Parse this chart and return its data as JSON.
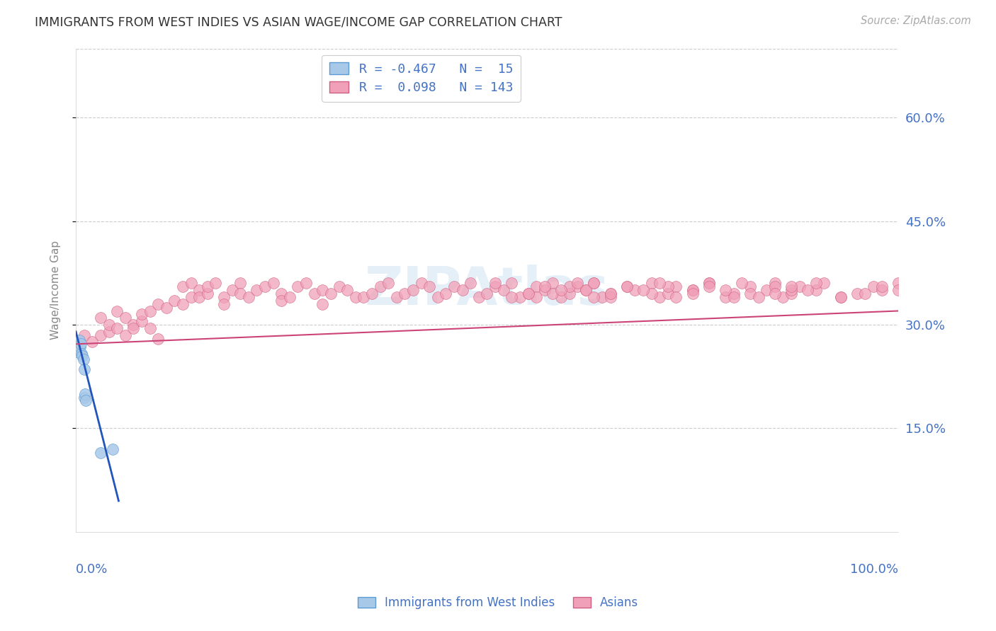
{
  "title": "IMMIGRANTS FROM WEST INDIES VS ASIAN WAGE/INCOME GAP CORRELATION CHART",
  "source": "Source: ZipAtlas.com",
  "ylabel": "Wage/Income Gap",
  "ytick_values": [
    0.15,
    0.3,
    0.45,
    0.6
  ],
  "ytick_labels": [
    "15.0%",
    "30.0%",
    "45.0%",
    "60.0%"
  ],
  "xlim": [
    0.0,
    1.0
  ],
  "ylim": [
    0.0,
    0.7
  ],
  "background_color": "#ffffff",
  "grid_color": "#cccccc",
  "title_color": "#333333",
  "axis_label_color": "#4472c4",
  "watermark": "ZIPAtlas",
  "blue_scatter_x": [
    0.001,
    0.002,
    0.003,
    0.004,
    0.005,
    0.006,
    0.007,
    0.008,
    0.009,
    0.01,
    0.01,
    0.011,
    0.012,
    0.03,
    0.045
  ],
  "blue_scatter_y": [
    0.27,
    0.265,
    0.26,
    0.278,
    0.268,
    0.272,
    0.258,
    0.255,
    0.25,
    0.235,
    0.195,
    0.2,
    0.19,
    0.115,
    0.12
  ],
  "blue_line_x": [
    0.0,
    0.052
  ],
  "blue_line_y": [
    0.29,
    0.045
  ],
  "pink_scatter_x": [
    0.01,
    0.02,
    0.03,
    0.03,
    0.04,
    0.04,
    0.05,
    0.05,
    0.06,
    0.06,
    0.07,
    0.07,
    0.08,
    0.08,
    0.09,
    0.09,
    0.1,
    0.1,
    0.11,
    0.12,
    0.13,
    0.13,
    0.14,
    0.14,
    0.15,
    0.15,
    0.16,
    0.16,
    0.17,
    0.18,
    0.18,
    0.19,
    0.2,
    0.2,
    0.21,
    0.22,
    0.23,
    0.24,
    0.25,
    0.25,
    0.26,
    0.27,
    0.28,
    0.29,
    0.3,
    0.3,
    0.31,
    0.32,
    0.33,
    0.34,
    0.35,
    0.36,
    0.37,
    0.38,
    0.39,
    0.4,
    0.41,
    0.42,
    0.43,
    0.44,
    0.45,
    0.46,
    0.47,
    0.48,
    0.49,
    0.5,
    0.51,
    0.52,
    0.53,
    0.54,
    0.55,
    0.56,
    0.57,
    0.58,
    0.59,
    0.6,
    0.61,
    0.62,
    0.63,
    0.64,
    0.65,
    0.67,
    0.68,
    0.7,
    0.71,
    0.72,
    0.73,
    0.75,
    0.77,
    0.79,
    0.8,
    0.82,
    0.84,
    0.85,
    0.86,
    0.87,
    0.88,
    0.9,
    0.91,
    0.93,
    0.95,
    0.97,
    0.98,
    1.0,
    0.56,
    0.58,
    0.6,
    0.62,
    0.63,
    0.65,
    0.7,
    0.72,
    0.75,
    0.77,
    0.8,
    0.82,
    0.85,
    0.87,
    0.9,
    0.93,
    0.96,
    0.98,
    1.0,
    0.51,
    0.53,
    0.55,
    0.57,
    0.59,
    0.61,
    0.63,
    0.65,
    0.67,
    0.69,
    0.71,
    0.73,
    0.75,
    0.77,
    0.79,
    0.81,
    0.83,
    0.85,
    0.87,
    0.89
  ],
  "pink_scatter_y": [
    0.285,
    0.275,
    0.285,
    0.31,
    0.29,
    0.3,
    0.32,
    0.295,
    0.31,
    0.285,
    0.3,
    0.295,
    0.305,
    0.315,
    0.32,
    0.295,
    0.33,
    0.28,
    0.325,
    0.335,
    0.355,
    0.33,
    0.34,
    0.36,
    0.35,
    0.34,
    0.345,
    0.355,
    0.36,
    0.34,
    0.33,
    0.35,
    0.36,
    0.345,
    0.34,
    0.35,
    0.355,
    0.36,
    0.345,
    0.335,
    0.34,
    0.355,
    0.36,
    0.345,
    0.35,
    0.33,
    0.345,
    0.355,
    0.35,
    0.34,
    0.34,
    0.345,
    0.355,
    0.36,
    0.34,
    0.345,
    0.35,
    0.36,
    0.355,
    0.34,
    0.345,
    0.355,
    0.35,
    0.36,
    0.34,
    0.345,
    0.355,
    0.35,
    0.36,
    0.34,
    0.345,
    0.355,
    0.35,
    0.36,
    0.34,
    0.345,
    0.355,
    0.35,
    0.36,
    0.34,
    0.345,
    0.355,
    0.35,
    0.36,
    0.34,
    0.345,
    0.355,
    0.35,
    0.36,
    0.34,
    0.345,
    0.355,
    0.35,
    0.36,
    0.34,
    0.345,
    0.355,
    0.35,
    0.36,
    0.34,
    0.345,
    0.355,
    0.35,
    0.36,
    0.34,
    0.345,
    0.355,
    0.35,
    0.36,
    0.34,
    0.345,
    0.355,
    0.35,
    0.36,
    0.34,
    0.345,
    0.355,
    0.35,
    0.36,
    0.34,
    0.345,
    0.355,
    0.35,
    0.36,
    0.34,
    0.345,
    0.355,
    0.35,
    0.36,
    0.34,
    0.345,
    0.355,
    0.35,
    0.36,
    0.34,
    0.345,
    0.355,
    0.35,
    0.36,
    0.34,
    0.345,
    0.355,
    0.35
  ],
  "pink_line_x": [
    0.0,
    1.0
  ],
  "pink_line_y": [
    0.272,
    0.32
  ],
  "legend1_label": "R = -0.467   N =  15",
  "legend2_label": "R =  0.098   N = 143",
  "bottom_legend1": "Immigrants from West Indies",
  "bottom_legend2": "Asians",
  "blue_dot_color": "#a8c8e8",
  "blue_dot_edge": "#5b9bd5",
  "pink_dot_color": "#f0a0b8",
  "pink_dot_edge": "#d06080",
  "blue_line_color": "#2255bb",
  "pink_line_color": "#cc4477"
}
